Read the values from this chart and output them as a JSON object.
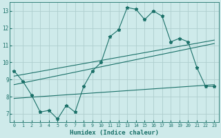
{
  "xlabel": "Humidex (Indice chaleur)",
  "bg_color": "#ceeaea",
  "grid_color": "#aecece",
  "line_color": "#1a7068",
  "marker": "*",
  "marker_size": 3.5,
  "xlim": [
    -0.5,
    23.5
  ],
  "ylim": [
    6.5,
    13.5
  ],
  "xticks": [
    0,
    1,
    2,
    3,
    4,
    5,
    6,
    7,
    8,
    9,
    10,
    11,
    12,
    13,
    14,
    15,
    16,
    17,
    18,
    19,
    20,
    21,
    22,
    23
  ],
  "yticks": [
    7,
    8,
    9,
    10,
    11,
    12,
    13
  ],
  "line1_x": [
    0,
    1,
    2,
    3,
    4,
    5,
    6,
    7,
    8,
    9,
    10,
    11,
    12,
    13,
    14,
    15,
    16,
    17,
    18,
    19,
    20,
    21,
    22,
    23
  ],
  "line1_y": [
    9.5,
    8.9,
    8.1,
    7.1,
    7.2,
    6.7,
    7.5,
    7.1,
    8.6,
    9.5,
    10.0,
    11.5,
    11.9,
    13.2,
    13.1,
    12.5,
    13.0,
    12.7,
    11.2,
    11.4,
    11.2,
    9.7,
    8.6,
    8.6
  ],
  "line2_x": [
    0,
    23
  ],
  "line2_y": [
    9.2,
    11.3
  ],
  "line3_x": [
    0,
    23
  ],
  "line3_y": [
    8.7,
    11.1
  ],
  "line4_x": [
    0,
    23
  ],
  "line4_y": [
    7.9,
    8.7
  ]
}
